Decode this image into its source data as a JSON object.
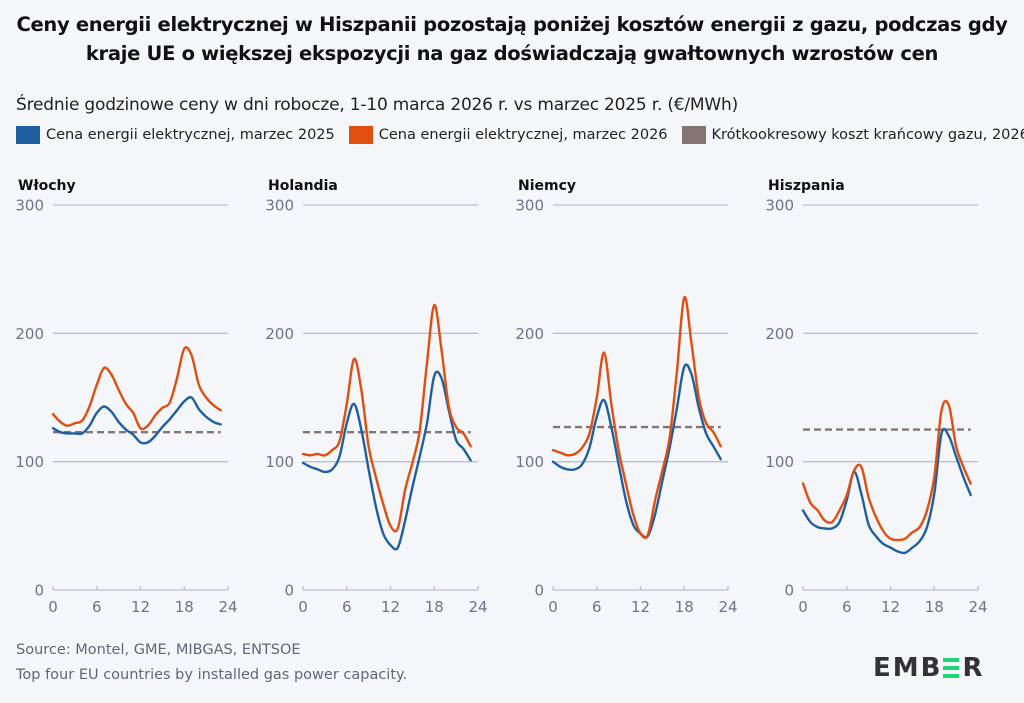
{
  "header": {
    "title_line1": "Ceny energii elektrycznej w Hiszpanii pozostają poniżej kosztów energii z gazu, podczas gdy",
    "title_line2": "kraje UE o większej ekspozycji na gaz doświadczają gwałtownych wzrostów cen",
    "subtitle": "Średnie godzinowe ceny w dni robocze, 1-10 marca 2026 r. vs marzec 2025 r. (€/MWh)"
  },
  "legend": [
    {
      "label": "Cena energii elektrycznej, marzec 2025",
      "color": "#1f5fa0"
    },
    {
      "label": "Cena energii elektrycznej, marzec 2026",
      "color": "#e04e10"
    },
    {
      "label": "Krótkookresowy koszt krańcowy gazu, 2026",
      "color": "#857572"
    }
  ],
  "footer": {
    "source": "Source: Montel, GME, MIBGAS, ENTSOE",
    "note": "Top four EU countries by installed gas power capacity."
  },
  "logo": {
    "pre": "EMB",
    "post": "R",
    "accent": "#1ed67a"
  },
  "chart_data": [
    {
      "type": "line",
      "title": "Włochy",
      "x": [
        0,
        1,
        2,
        3,
        4,
        5,
        6,
        7,
        8,
        9,
        10,
        11,
        12,
        13,
        14,
        15,
        16,
        17,
        18,
        19,
        20,
        21,
        22,
        23
      ],
      "xticks": [
        0,
        6,
        12,
        18,
        24
      ],
      "xlim": [
        0,
        24
      ],
      "yticks": [
        0,
        100,
        200,
        300
      ],
      "ylim": [
        0,
        300
      ],
      "series": [
        {
          "name": "Cena energii elektrycznej, marzec 2025",
          "values": [
            126,
            123,
            122,
            122,
            122,
            128,
            138,
            143,
            139,
            131,
            125,
            121,
            115,
            115,
            120,
            127,
            133,
            140,
            147,
            150,
            141,
            135,
            131,
            129
          ]
        },
        {
          "name": "Cena energii elektrycznej, marzec 2026",
          "values": [
            137,
            131,
            128,
            130,
            132,
            143,
            160,
            173,
            168,
            156,
            145,
            138,
            126,
            128,
            136,
            142,
            146,
            165,
            188,
            183,
            160,
            150,
            144,
            140
          ]
        },
        {
          "name": "Krótkookresowy koszt krańcowy gazu, 2026",
          "values": [
            123,
            123
          ]
        }
      ]
    },
    {
      "type": "line",
      "title": "Holandia",
      "x": [
        0,
        1,
        2,
        3,
        4,
        5,
        6,
        7,
        8,
        9,
        10,
        11,
        12,
        13,
        14,
        15,
        16,
        17,
        18,
        19,
        20,
        21,
        22,
        23
      ],
      "xticks": [
        0,
        6,
        12,
        18,
        24
      ],
      "xlim": [
        0,
        24
      ],
      "yticks": [
        0,
        100,
        200,
        300
      ],
      "ylim": [
        0,
        300
      ],
      "series": [
        {
          "name": "Cena energii elektrycznej, marzec 2025",
          "values": [
            99,
            96,
            94,
            92,
            94,
            104,
            130,
            145,
            125,
            94,
            65,
            44,
            35,
            33,
            54,
            80,
            104,
            130,
            167,
            165,
            140,
            117,
            110,
            101
          ]
        },
        {
          "name": "Cena energii elektrycznej, marzec 2026",
          "values": [
            106,
            105,
            106,
            105,
            109,
            116,
            145,
            180,
            156,
            112,
            88,
            67,
            50,
            48,
            78,
            99,
            124,
            177,
            222,
            187,
            143,
            127,
            122,
            112
          ]
        },
        {
          "name": "Krótkookresowy koszt krańcowy gazu, 2026",
          "values": [
            123,
            123
          ]
        }
      ]
    },
    {
      "type": "line",
      "title": "Niemcy",
      "x": [
        0,
        1,
        2,
        3,
        4,
        5,
        6,
        7,
        8,
        9,
        10,
        11,
        12,
        13,
        14,
        15,
        16,
        17,
        18,
        19,
        20,
        21,
        22,
        23
      ],
      "xticks": [
        0,
        6,
        12,
        18,
        24
      ],
      "xlim": [
        0,
        24
      ],
      "yticks": [
        0,
        100,
        200,
        300
      ],
      "ylim": [
        0,
        300
      ],
      "series": [
        {
          "name": "Cena energii elektrycznej, marzec 2025",
          "values": [
            100,
            96,
            94,
            94,
            98,
            111,
            135,
            148,
            127,
            98,
            70,
            51,
            44,
            42,
            59,
            85,
            111,
            142,
            174,
            168,
            142,
            122,
            112,
            102
          ]
        },
        {
          "name": "Cena energii elektrycznej, marzec 2026",
          "values": [
            109,
            107,
            105,
            106,
            111,
            122,
            150,
            185,
            145,
            109,
            83,
            59,
            44,
            43,
            70,
            93,
            119,
            171,
            228,
            192,
            150,
            130,
            123,
            112
          ]
        },
        {
          "name": "Krótkookresowy koszt krańcowy gazu, 2026",
          "values": [
            127,
            127
          ]
        }
      ]
    },
    {
      "type": "line",
      "title": "Hiszpania",
      "x": [
        0,
        1,
        2,
        3,
        4,
        5,
        6,
        7,
        8,
        9,
        10,
        11,
        12,
        13,
        14,
        15,
        16,
        17,
        18,
        19,
        20,
        21,
        22,
        23
      ],
      "xticks": [
        0,
        6,
        12,
        18,
        24
      ],
      "xlim": [
        0,
        24
      ],
      "yticks": [
        0,
        100,
        200,
        300
      ],
      "ylim": [
        0,
        300
      ],
      "series": [
        {
          "name": "Cena energii elektrycznej, marzec 2025",
          "values": [
            62,
            53,
            49,
            48,
            48,
            53,
            70,
            92,
            75,
            51,
            42,
            36,
            33,
            30,
            29,
            33,
            38,
            49,
            75,
            122,
            120,
            104,
            88,
            74
          ]
        },
        {
          "name": "Cena energii elektrycznej, marzec 2026",
          "values": [
            83,
            68,
            62,
            54,
            53,
            62,
            74,
            93,
            96,
            72,
            57,
            46,
            40,
            39,
            40,
            45,
            49,
            62,
            88,
            140,
            144,
            112,
            96,
            83
          ]
        },
        {
          "name": "Krótkookresowy koszt krańcowy gazu, 2026",
          "values": [
            125,
            125
          ]
        }
      ]
    }
  ]
}
